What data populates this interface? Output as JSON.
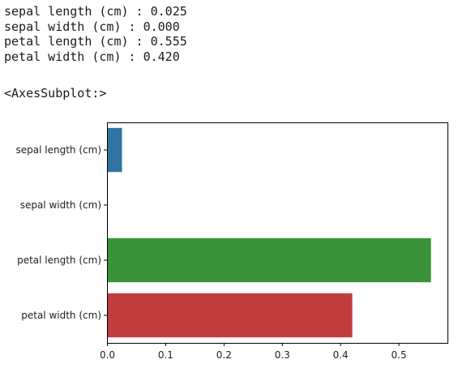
{
  "output_lines": [
    "sepal length (cm) : 0.025",
    "sepal width (cm) : 0.000",
    "petal length (cm) : 0.555",
    "petal width (cm) : 0.420"
  ],
  "repr_text": "<AxesSubplot:>",
  "chart_data": {
    "type": "bar",
    "orientation": "horizontal",
    "categories": [
      "sepal length (cm)",
      "sepal width (cm)",
      "petal length (cm)",
      "petal width (cm)"
    ],
    "values": [
      0.025,
      0.0,
      0.555,
      0.42
    ],
    "colors": [
      "#3274a1",
      "#e1812c",
      "#3a923a",
      "#c03d3e"
    ],
    "xlim": [
      0,
      0.584
    ],
    "xticks": [
      0.0,
      0.1,
      0.2,
      0.3,
      0.4,
      0.5
    ],
    "xtick_labels": [
      "0.0",
      "0.1",
      "0.2",
      "0.3",
      "0.4",
      "0.5"
    ],
    "grid": false,
    "legend": "none"
  }
}
